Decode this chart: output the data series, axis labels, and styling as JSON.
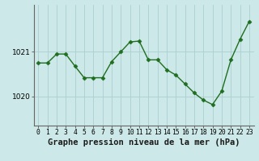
{
  "x": [
    0,
    1,
    2,
    3,
    4,
    5,
    6,
    7,
    8,
    9,
    10,
    11,
    12,
    13,
    14,
    15,
    16,
    17,
    18,
    19,
    20,
    21,
    22,
    23
  ],
  "y": [
    1020.75,
    1020.75,
    1020.95,
    1020.95,
    1020.68,
    1020.42,
    1020.42,
    1020.42,
    1020.78,
    1021.0,
    1021.22,
    1021.24,
    1020.82,
    1020.82,
    1020.6,
    1020.48,
    1020.28,
    1020.08,
    1019.92,
    1019.82,
    1020.12,
    1020.82,
    1021.28,
    1021.68
  ],
  "line_color": "#1f6e1f",
  "marker": "D",
  "markersize": 2.5,
  "linewidth": 1.0,
  "bg_color": "#cce8e8",
  "grid_color": "#aad0d0",
  "xlabel": "Graphe pression niveau de la mer (hPa)",
  "xlabel_fontsize": 7.5,
  "yticks": [
    1020,
    1021
  ],
  "ylim": [
    1019.35,
    1022.05
  ],
  "xlim": [
    -0.5,
    23.5
  ],
  "xtick_labels": [
    "0",
    "1",
    "2",
    "3",
    "4",
    "5",
    "6",
    "7",
    "8",
    "9",
    "10",
    "11",
    "12",
    "13",
    "14",
    "15",
    "16",
    "17",
    "18",
    "19",
    "20",
    "21",
    "22",
    "23"
  ],
  "tick_fontsize": 5.8,
  "ytick_fontsize": 6.5,
  "spine_color": "#666666"
}
